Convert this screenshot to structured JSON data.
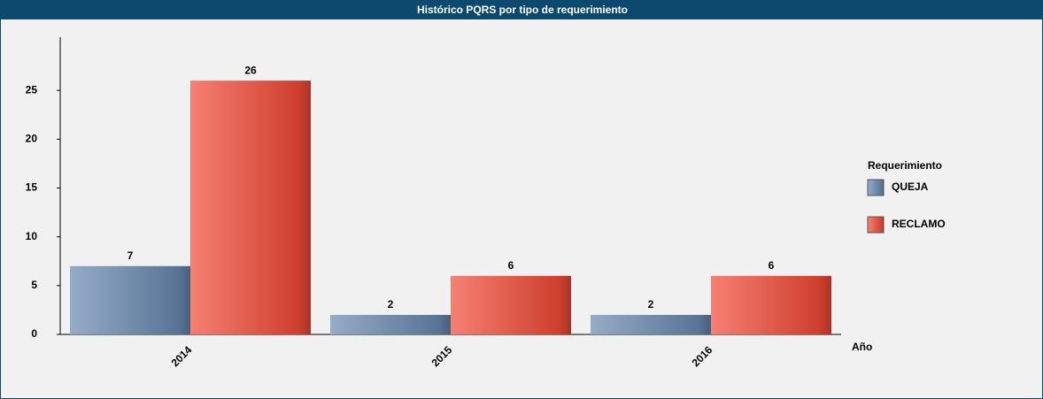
{
  "chart_data": {
    "type": "bar",
    "title": "Histórico PQRS por tipo de requerimiento",
    "x_label": "Año",
    "legend_title": "Requerimiento",
    "legend_position": "right",
    "categories": [
      "2014",
      "2015",
      "2016"
    ],
    "series": [
      {
        "name": "QUEJA",
        "color": "#6888b0",
        "values": [
          7,
          2,
          2
        ]
      },
      {
        "name": "RECLAMO",
        "color": "#f24a36",
        "values": [
          26,
          6,
          6
        ]
      }
    ],
    "ylim": [
      0,
      30
    ],
    "yticks": [
      0,
      5,
      10,
      15,
      20,
      25
    ],
    "grid": false
  }
}
